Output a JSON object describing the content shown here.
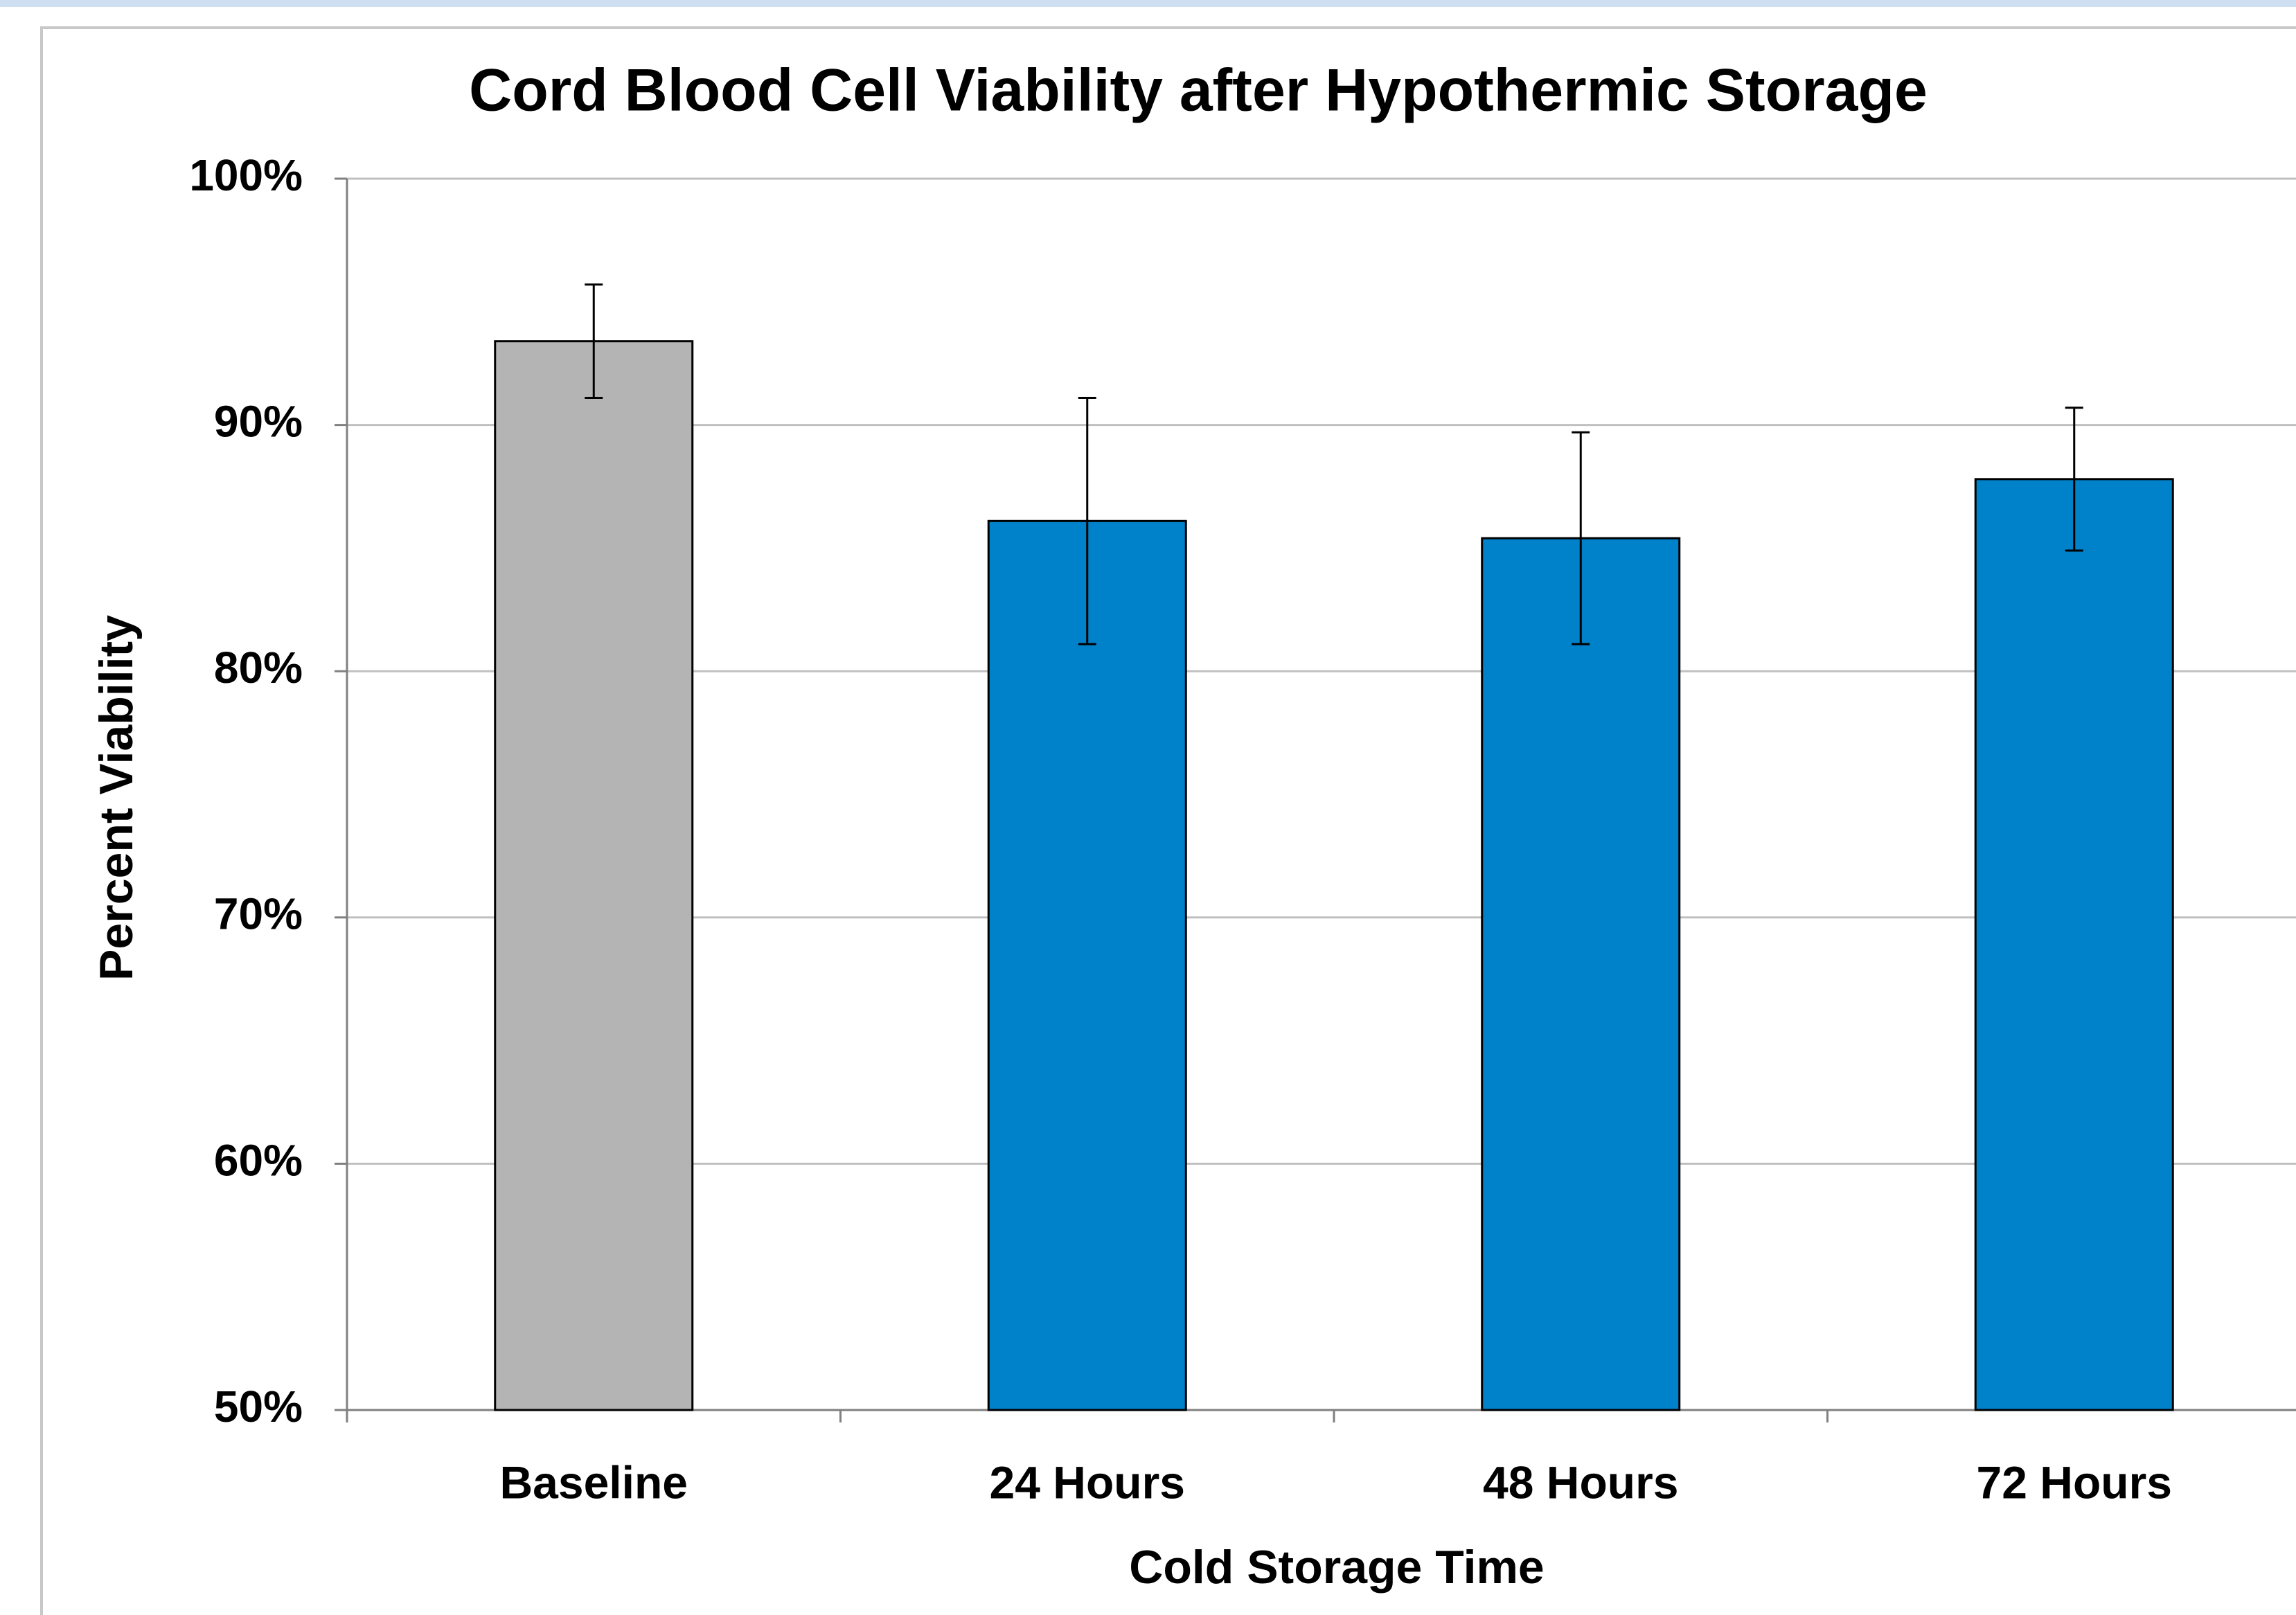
{
  "chart_data": {
    "type": "bar",
    "title": "Cord Blood Cell Viability after Hypothermic Storage",
    "x_label": "Cold Storage Time",
    "y_label": "Percent Viability",
    "categories": [
      "Baseline",
      "24 Hours",
      "48 Hours",
      "72 Hours"
    ],
    "values": [
      93.4,
      86.1,
      85.4,
      87.8
    ],
    "errors": [
      2.3,
      5.0,
      4.3,
      2.9
    ],
    "colors": [
      "#b4b4b4",
      "#0082ca",
      "#0082ca",
      "#0082ca"
    ],
    "ylim": [
      50,
      100
    ],
    "yticks": [
      {
        "value": 50,
        "label": "50%"
      },
      {
        "value": 60,
        "label": "60%"
      },
      {
        "value": 70,
        "label": "70%"
      },
      {
        "value": 80,
        "label": "80%"
      },
      {
        "value": 90,
        "label": "90%"
      },
      {
        "value": 100,
        "label": "100%"
      }
    ],
    "grid": true
  }
}
